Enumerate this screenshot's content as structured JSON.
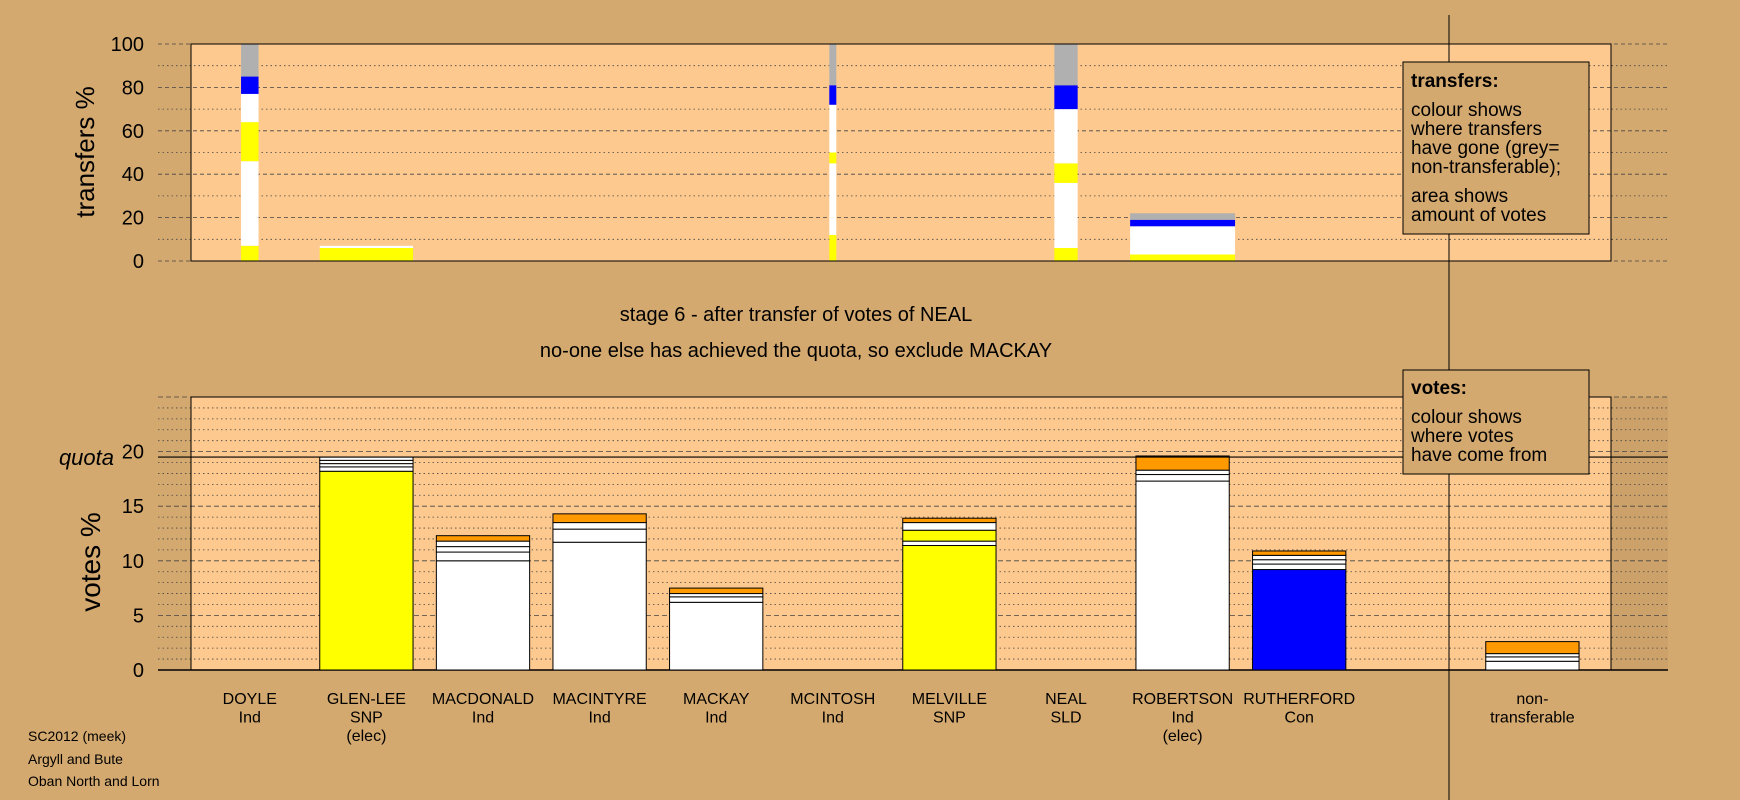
{
  "footer": {
    "line1": "SC2012 (meek)",
    "line2": "Argyll and Bute",
    "line3": "Oban North and Lorn"
  },
  "colors": {
    "background": "#d4a96f",
    "plot_area": "#fdc98e",
    "nontransferable": "#b0b0b0",
    "snp": "#ffff00",
    "ind": "#ffffff",
    "con": "#0000ff",
    "transferred": "#ff9900"
  },
  "chart_data": [
    {
      "type": "bar",
      "id": "transfers",
      "ylabel": "transfers %",
      "ylim": [
        0,
        100
      ],
      "yticks": [
        0,
        20,
        40,
        60,
        80,
        100
      ],
      "legend": {
        "title": "transfers:",
        "lines": [
          "colour shows",
          "where transfers",
          "have gone (grey=",
          "non-transferable);",
          "area shows",
          "amount of votes"
        ]
      },
      "bars": [
        {
          "slot": 0,
          "width_units": 0.15,
          "segments": [
            {
              "color": "#ffff00",
              "value": 7
            },
            {
              "color": "#ffffff",
              "value": 39
            },
            {
              "color": "#ffff00",
              "value": 18
            },
            {
              "color": "#ffffff",
              "value": 13
            },
            {
              "color": "#0000ff",
              "value": 8
            },
            {
              "color": "#b0b0b0",
              "value": 15
            }
          ]
        },
        {
          "slot": 1,
          "width_units": 0.8,
          "segments": [
            {
              "color": "#ffff00",
              "value": 6
            },
            {
              "color": "#ffffff",
              "value": 1
            }
          ]
        },
        {
          "slot": 5,
          "width_units": 0.06,
          "segments": [
            {
              "color": "#ffff00",
              "value": 12
            },
            {
              "color": "#ffffff",
              "value": 33
            },
            {
              "color": "#ffff00",
              "value": 5
            },
            {
              "color": "#ffffff",
              "value": 22
            },
            {
              "color": "#0000ff",
              "value": 9
            },
            {
              "color": "#b0b0b0",
              "value": 19
            }
          ]
        },
        {
          "slot": 7,
          "width_units": 0.2,
          "segments": [
            {
              "color": "#ffff00",
              "value": 6
            },
            {
              "color": "#ffffff",
              "value": 30
            },
            {
              "color": "#ffff00",
              "value": 9
            },
            {
              "color": "#ffffff",
              "value": 25
            },
            {
              "color": "#0000ff",
              "value": 11
            },
            {
              "color": "#b0b0b0",
              "value": 19
            }
          ]
        },
        {
          "slot": 8,
          "width_units": 0.9,
          "segments": [
            {
              "color": "#ffff00",
              "value": 3
            },
            {
              "color": "#ffffff",
              "value": 13
            },
            {
              "color": "#0000ff",
              "value": 3
            },
            {
              "color": "#b0b0b0",
              "value": 3
            }
          ]
        }
      ]
    },
    {
      "type": "bar",
      "id": "votes",
      "stage_title": "stage 6 - after transfer of votes of NEAL",
      "stage_subtitle": "no-one else has achieved the quota, so exclude MACKAY",
      "ylabel": "votes %",
      "ylim": [
        0,
        25
      ],
      "yticks": [
        0,
        5,
        10,
        15,
        20
      ],
      "quota_label": "quota",
      "quota": 19.5,
      "legend": {
        "title": "votes:",
        "lines": [
          "colour shows",
          "where votes",
          "have come from"
        ]
      },
      "categories": [
        {
          "name": "DOYLE",
          "party": "Ind",
          "note": ""
        },
        {
          "name": "GLEN-LEE",
          "party": "SNP",
          "note": "(elec)"
        },
        {
          "name": "MACDONALD",
          "party": "Ind",
          "note": ""
        },
        {
          "name": "MACINTYRE",
          "party": "Ind",
          "note": ""
        },
        {
          "name": "MACKAY",
          "party": "Ind",
          "note": ""
        },
        {
          "name": "MCINTOSH",
          "party": "Ind",
          "note": ""
        },
        {
          "name": "MELVILLE",
          "party": "SNP",
          "note": ""
        },
        {
          "name": "NEAL",
          "party": "SLD",
          "note": ""
        },
        {
          "name": "ROBERTSON",
          "party": "Ind",
          "note": "(elec)"
        },
        {
          "name": "RUTHERFORD",
          "party": "Con",
          "note": ""
        }
      ],
      "nontransferable_label": {
        "line1": "non-",
        "line2": "transferable"
      },
      "bars": [
        {
          "slot": 0,
          "segments": []
        },
        {
          "slot": 1,
          "segments": [
            {
              "color": "#ffff00",
              "value": 18.2
            },
            {
              "color": "#ffffff",
              "value": 0.4
            },
            {
              "color": "#ffffff",
              "value": 0.3
            },
            {
              "color": "#ffffff",
              "value": 0.3
            },
            {
              "color": "#ffffff",
              "value": 0.3
            }
          ]
        },
        {
          "slot": 2,
          "segments": [
            {
              "color": "#ffffff",
              "value": 10.0
            },
            {
              "color": "#ffffff",
              "value": 0.8
            },
            {
              "color": "#ffffff",
              "value": 0.5
            },
            {
              "color": "#ffffff",
              "value": 0.5
            },
            {
              "color": "#ff9900",
              "value": 0.5
            }
          ]
        },
        {
          "slot": 3,
          "segments": [
            {
              "color": "#ffffff",
              "value": 11.7
            },
            {
              "color": "#ffffff",
              "value": 1.2
            },
            {
              "color": "#ffffff",
              "value": 0.6
            },
            {
              "color": "#ff9900",
              "value": 0.8
            }
          ]
        },
        {
          "slot": 4,
          "segments": [
            {
              "color": "#ffffff",
              "value": 6.2
            },
            {
              "color": "#ffffff",
              "value": 0.5
            },
            {
              "color": "#ffffff",
              "value": 0.3
            },
            {
              "color": "#ff9900",
              "value": 0.5
            }
          ]
        },
        {
          "slot": 5,
          "segments": []
        },
        {
          "slot": 6,
          "segments": [
            {
              "color": "#ffff00",
              "value": 11.4
            },
            {
              "color": "#ffffff",
              "value": 0.4
            },
            {
              "color": "#ffff00",
              "value": 1.0
            },
            {
              "color": "#ffffff",
              "value": 0.7
            },
            {
              "color": "#ff9900",
              "value": 0.4
            }
          ]
        },
        {
          "slot": 7,
          "segments": []
        },
        {
          "slot": 8,
          "segments": [
            {
              "color": "#ffffff",
              "value": 17.3
            },
            {
              "color": "#ffffff",
              "value": 0.6
            },
            {
              "color": "#ffffff",
              "value": 0.4
            },
            {
              "color": "#ff9900",
              "value": 1.3
            }
          ]
        },
        {
          "slot": 9,
          "segments": [
            {
              "color": "#0000ff",
              "value": 9.2
            },
            {
              "color": "#ffffff",
              "value": 0.5
            },
            {
              "color": "#ffffff",
              "value": 0.4
            },
            {
              "color": "#ffffff",
              "value": 0.4
            },
            {
              "color": "#ff9900",
              "value": 0.4
            }
          ]
        },
        {
          "slot": 11,
          "segments": [
            {
              "color": "#ffffff",
              "value": 0.8
            },
            {
              "color": "#ffffff",
              "value": 0.4
            },
            {
              "color": "#ffffff",
              "value": 0.3
            },
            {
              "color": "#ff9900",
              "value": 1.1
            }
          ]
        }
      ]
    }
  ]
}
